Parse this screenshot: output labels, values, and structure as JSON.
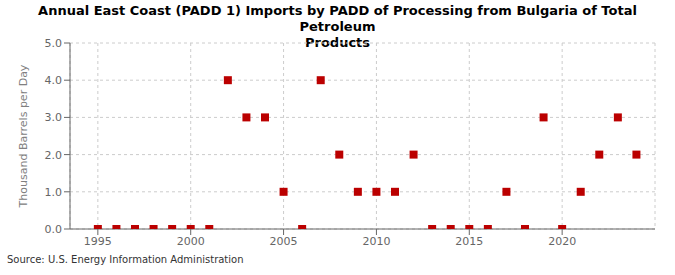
{
  "chart_data": {
    "type": "scatter",
    "title": "Annual East Coast (PADD 1) Imports by PADD of Processing from Bulgaria of Total Petroleum\nProducts",
    "ylabel": "Thousand Barrels per Day",
    "annotations": [
      "Source: U.S. Energy Information Administration"
    ],
    "x": [
      1995,
      1996,
      1997,
      1998,
      1999,
      2000,
      2001,
      2002,
      2003,
      2004,
      2005,
      2006,
      2007,
      2008,
      2009,
      2010,
      2011,
      2012,
      2013,
      2014,
      2015,
      2016,
      2017,
      2018,
      2019,
      2020,
      2021,
      2022,
      2023,
      2024
    ],
    "values": [
      0.0,
      0.0,
      0.0,
      0.0,
      0.0,
      0.0,
      0.0,
      4.0,
      3.0,
      3.0,
      1.0,
      0.0,
      4.0,
      2.0,
      1.0,
      1.0,
      1.0,
      2.0,
      0.0,
      0.0,
      0.0,
      0.0,
      1.0,
      0.0,
      3.0,
      0.0,
      1.0,
      2.0,
      3.0,
      2.0
    ],
    "color": "#bb0000",
    "marker": "square",
    "xlim": [
      1993.5,
      2025
    ],
    "ylim": [
      0,
      5.0
    ],
    "xticks": [
      1995,
      2000,
      2005,
      2010,
      2015,
      2020
    ],
    "yticks": [
      {
        "value": 0,
        "label": "0.0"
      },
      {
        "value": 1,
        "label": "1.0"
      },
      {
        "value": 2,
        "label": "2.0"
      },
      {
        "value": 3,
        "label": "3.0"
      },
      {
        "value": 4,
        "label": "4.0"
      },
      {
        "value": 5,
        "label": "5.0"
      }
    ],
    "grid": true
  }
}
